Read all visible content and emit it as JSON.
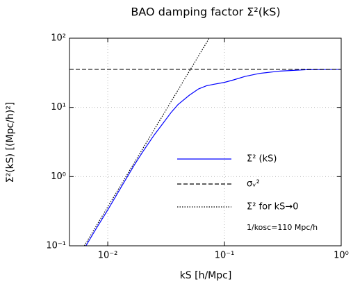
{
  "chart_data": {
    "type": "line",
    "title": "BAO damping factor Σ²(kS)",
    "xlabel": "kS [h/Mpc]",
    "ylabel": "Σ²(kS) [(Mpc/h)²]",
    "annotation": "1/kosc=110 Mpc/h",
    "xscale": "log",
    "yscale": "log",
    "grid": true,
    "legend": "lower right",
    "xlim": [
      0.0047,
      1
    ],
    "ylim": [
      0.1,
      100
    ],
    "xticks": [
      {
        "value": 0.01,
        "label": "10⁻²"
      },
      {
        "value": 0.1,
        "label": "10⁻¹"
      },
      {
        "value": 1,
        "label": "10⁰"
      }
    ],
    "yticks": [
      {
        "value": 0.1,
        "label": "10⁻¹"
      },
      {
        "value": 1,
        "label": "10⁰"
      },
      {
        "value": 10,
        "label": "10¹"
      },
      {
        "value": 100,
        "label": "10²"
      }
    ],
    "series": [
      {
        "name": "Σ² (kS)",
        "color": "#0000ff",
        "dash": "solid",
        "x": [
          0.0065,
          0.008,
          0.01,
          0.0135,
          0.017,
          0.02,
          0.025,
          0.03,
          0.035,
          0.04,
          0.05,
          0.06,
          0.07,
          0.08,
          0.1,
          0.12,
          0.15,
          0.2,
          0.3,
          0.5,
          1
        ],
        "values": [
          0.1,
          0.18,
          0.33,
          0.78,
          1.5,
          2.3,
          4.0,
          6.0,
          8.5,
          11,
          15,
          18.5,
          20.5,
          21.5,
          23,
          25,
          28,
          31,
          33.5,
          35,
          35.5
        ]
      },
      {
        "name": "σᵥ²",
        "color": "#000000",
        "dash": "dashed",
        "x": [
          0.0047,
          1
        ],
        "values": [
          35.5,
          35.5
        ]
      },
      {
        "name": "Σ² for kS→0",
        "color": "#000000",
        "dash": "dotted",
        "x": [
          0.0063,
          0.074
        ],
        "values": [
          0.1,
          100
        ]
      }
    ]
  }
}
